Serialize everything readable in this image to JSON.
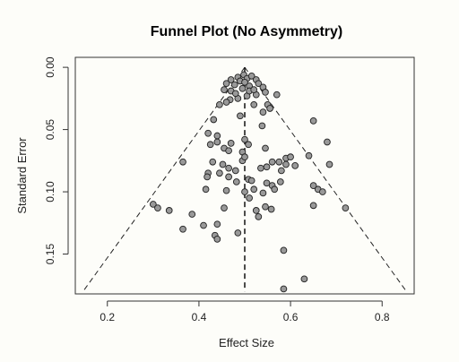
{
  "chart_data": {
    "type": "scatter",
    "title": "Funnel Plot (No Asymmetry)",
    "xlabel": "Effect Size",
    "ylabel": "Standard Error",
    "xlim": [
      0.13,
      0.87
    ],
    "ylim": [
      0.182,
      -0.008
    ],
    "y_reversed": true,
    "x_ticks": [
      0.2,
      0.4,
      0.6,
      0.8
    ],
    "x_tick_labels": [
      "0.2",
      "0.4",
      "0.6",
      "0.8"
    ],
    "y_ticks": [
      0.0,
      0.05,
      0.1,
      0.15
    ],
    "y_tick_labels": [
      "0.00",
      "0.05",
      "0.10",
      "0.15"
    ],
    "grid": false,
    "legend": "none",
    "summary_effect": 0.5,
    "funnel_apex": [
      0.5,
      0.0
    ],
    "funnel_base_se": 0.18,
    "funnel_base_left": 0.147,
    "funnel_base_right": 0.853,
    "colors": {
      "point_fill": "#999999",
      "point_stroke": "#222222",
      "line": "#222222"
    },
    "points": [
      [
        0.47,
        0.01
      ],
      [
        0.485,
        0.008
      ],
      [
        0.498,
        0.006
      ],
      [
        0.505,
        0.009
      ],
      [
        0.515,
        0.007
      ],
      [
        0.525,
        0.01
      ],
      [
        0.49,
        0.011
      ],
      [
        0.478,
        0.014
      ],
      [
        0.46,
        0.013
      ],
      [
        0.455,
        0.018
      ],
      [
        0.47,
        0.019
      ],
      [
        0.495,
        0.017
      ],
      [
        0.51,
        0.015
      ],
      [
        0.53,
        0.013
      ],
      [
        0.54,
        0.016
      ],
      [
        0.545,
        0.02
      ],
      [
        0.525,
        0.022
      ],
      [
        0.505,
        0.023
      ],
      [
        0.485,
        0.025
      ],
      [
        0.468,
        0.026
      ],
      [
        0.52,
        0.03
      ],
      [
        0.55,
        0.03
      ],
      [
        0.555,
        0.033
      ],
      [
        0.54,
        0.036
      ],
      [
        0.57,
        0.022
      ],
      [
        0.5,
        0.012
      ],
      [
        0.51,
        0.019
      ],
      [
        0.48,
        0.021
      ],
      [
        0.52,
        0.018
      ],
      [
        0.46,
        0.028
      ],
      [
        0.445,
        0.03
      ],
      [
        0.432,
        0.042
      ],
      [
        0.49,
        0.039
      ],
      [
        0.538,
        0.047
      ],
      [
        0.65,
        0.043
      ],
      [
        0.42,
        0.053
      ],
      [
        0.44,
        0.055
      ],
      [
        0.44,
        0.06
      ],
      [
        0.425,
        0.062
      ],
      [
        0.47,
        0.061
      ],
      [
        0.5,
        0.058
      ],
      [
        0.508,
        0.062
      ],
      [
        0.455,
        0.065
      ],
      [
        0.465,
        0.067
      ],
      [
        0.495,
        0.068
      ],
      [
        0.545,
        0.065
      ],
      [
        0.56,
        0.076
      ],
      [
        0.575,
        0.076
      ],
      [
        0.59,
        0.073
      ],
      [
        0.6,
        0.072
      ],
      [
        0.61,
        0.079
      ],
      [
        0.64,
        0.071
      ],
      [
        0.68,
        0.06
      ],
      [
        0.685,
        0.078
      ],
      [
        0.365,
        0.076
      ],
      [
        0.43,
        0.076
      ],
      [
        0.452,
        0.078
      ],
      [
        0.495,
        0.075
      ],
      [
        0.5,
        0.072
      ],
      [
        0.535,
        0.081
      ],
      [
        0.548,
        0.08
      ],
      [
        0.58,
        0.083
      ],
      [
        0.59,
        0.078
      ],
      [
        0.465,
        0.081
      ],
      [
        0.48,
        0.083
      ],
      [
        0.42,
        0.085
      ],
      [
        0.445,
        0.085
      ],
      [
        0.418,
        0.088
      ],
      [
        0.465,
        0.088
      ],
      [
        0.482,
        0.092
      ],
      [
        0.508,
        0.09
      ],
      [
        0.515,
        0.091
      ],
      [
        0.548,
        0.093
      ],
      [
        0.578,
        0.092
      ],
      [
        0.56,
        0.095
      ],
      [
        0.5,
        0.1
      ],
      [
        0.51,
        0.105
      ],
      [
        0.54,
        0.101
      ],
      [
        0.565,
        0.098
      ],
      [
        0.65,
        0.095
      ],
      [
        0.66,
        0.098
      ],
      [
        0.67,
        0.1
      ],
      [
        0.415,
        0.098
      ],
      [
        0.46,
        0.099
      ],
      [
        0.52,
        0.098
      ],
      [
        0.3,
        0.11
      ],
      [
        0.31,
        0.113
      ],
      [
        0.335,
        0.115
      ],
      [
        0.385,
        0.118
      ],
      [
        0.455,
        0.113
      ],
      [
        0.525,
        0.115
      ],
      [
        0.545,
        0.112
      ],
      [
        0.558,
        0.114
      ],
      [
        0.53,
        0.12
      ],
      [
        0.65,
        0.111
      ],
      [
        0.72,
        0.113
      ],
      [
        0.41,
        0.127
      ],
      [
        0.365,
        0.13
      ],
      [
        0.44,
        0.126
      ],
      [
        0.485,
        0.133
      ],
      [
        0.435,
        0.135
      ],
      [
        0.44,
        0.138
      ],
      [
        0.585,
        0.147
      ],
      [
        0.63,
        0.17
      ],
      [
        0.585,
        0.178
      ]
    ]
  }
}
